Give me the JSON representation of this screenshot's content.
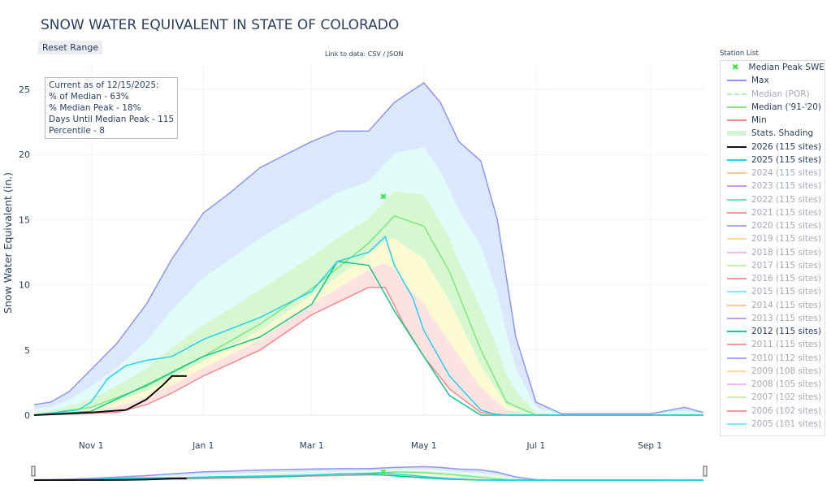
{
  "title": "SNOW WATER EQUIVALENT IN STATE OF COLORADO",
  "reset_label": "Reset Range",
  "link_text": "Link to data: CSV / JSON",
  "info": [
    "Current as of 12/15/2025:",
    "% of Median - 63%",
    "% Median Peak - 18%",
    "Days Until Median Peak - 115",
    "Percentile - 8"
  ],
  "station_list_label": "Station List",
  "legend": [
    {
      "label": "Median Peak SWE",
      "color": "#33ee33",
      "marker": "x",
      "active": true
    },
    {
      "label": "Max",
      "color": "#8f94f0",
      "active": true
    },
    {
      "label": "Median (POR)",
      "color": "#b8f2b8",
      "dash": true,
      "active": false
    },
    {
      "label": "Median ('91-'20)",
      "color": "#7ee87e",
      "active": true
    },
    {
      "label": "Min",
      "color": "#f08c8c",
      "active": true
    },
    {
      "label": "Stats. Shading",
      "color": "#d3f5d3",
      "thick": true,
      "active": true
    },
    {
      "label": "2026 (115 sites)",
      "color": "#111111",
      "active": true
    },
    {
      "label": "2025 (115 sites)",
      "color": "#22d3ee",
      "active": true
    },
    {
      "label": "2024 (115 sites)",
      "color": "#fbc89a",
      "active": false
    },
    {
      "label": "2023 (115 sites)",
      "color": "#c79af5",
      "active": false
    },
    {
      "label": "2022 (115 sites)",
      "color": "#6fe0c0",
      "active": false
    },
    {
      "label": "2021 (115 sites)",
      "color": "#f59a9a",
      "active": false
    },
    {
      "label": "2020 (115 sites)",
      "color": "#a6a8f5",
      "active": false
    },
    {
      "label": "2019 (115 sites)",
      "color": "#fcd99a",
      "active": false
    },
    {
      "label": "2018 (115 sites)",
      "color": "#f5b5f0",
      "active": false
    },
    {
      "label": "2017 (115 sites)",
      "color": "#c9eea5",
      "active": false
    },
    {
      "label": "2016 (115 sites)",
      "color": "#f59a9a",
      "active": false
    },
    {
      "label": "2015 (115 sites)",
      "color": "#8ae6f2",
      "active": false
    },
    {
      "label": "2014 (115 sites)",
      "color": "#fbc89a",
      "active": false
    },
    {
      "label": "2013 (115 sites)",
      "color": "#c79af5",
      "active": false
    },
    {
      "label": "2012 (115 sites)",
      "color": "#10c98a",
      "active": true
    },
    {
      "label": "2011 (115 sites)",
      "color": "#f59a9a",
      "active": false
    },
    {
      "label": "2010 (112 sites)",
      "color": "#a6a8f5",
      "active": false
    },
    {
      "label": "2009 (108 sites)",
      "color": "#fcd99a",
      "active": false
    },
    {
      "label": "2008 (105 sites)",
      "color": "#f5b5f0",
      "active": false
    },
    {
      "label": "2007 (102 sites)",
      "color": "#c9eea5",
      "active": false
    },
    {
      "label": "2006 (102 sites)",
      "color": "#f59a9a",
      "active": false
    },
    {
      "label": "2005 (101 sites)",
      "color": "#8ae6f2",
      "active": false
    }
  ],
  "chart_data": {
    "type": "line",
    "ylabel": "Snow Water Equivalent (in.)",
    "ylim": [
      0,
      27
    ],
    "yticks": [
      0,
      5,
      10,
      15,
      20,
      25
    ],
    "xlim": [
      "10-01",
      "09-30"
    ],
    "xticks": [
      {
        "date": "11-01",
        "label": "Nov 1"
      },
      {
        "date": "01-01",
        "label": "Jan 1"
      },
      {
        "date": "03-01",
        "label": "Mar 1"
      },
      {
        "date": "05-01",
        "label": "May 1"
      },
      {
        "date": "07-01",
        "label": "Jul 1"
      },
      {
        "date": "09-01",
        "label": "Sep 1"
      }
    ],
    "grid": true,
    "legend_position": "right",
    "median_peak": {
      "date": "04-09",
      "value": 16.8
    },
    "series": [
      {
        "name": "Max",
        "color": "#8f94f0",
        "points": [
          [
            "10-01",
            0.8
          ],
          [
            "10-10",
            1.0
          ],
          [
            "10-20",
            1.8
          ],
          [
            "11-01",
            3.5
          ],
          [
            "11-15",
            5.5
          ],
          [
            "12-01",
            8.5
          ],
          [
            "12-15",
            12
          ],
          [
            "01-01",
            15.5
          ],
          [
            "01-15",
            17
          ],
          [
            "02-01",
            19
          ],
          [
            "02-15",
            20
          ],
          [
            "03-01",
            21
          ],
          [
            "03-15",
            21.8
          ],
          [
            "04-01",
            21.8
          ],
          [
            "04-15",
            24
          ],
          [
            "05-01",
            25.5
          ],
          [
            "05-10",
            24
          ],
          [
            "05-20",
            21
          ],
          [
            "06-01",
            19.5
          ],
          [
            "06-10",
            15
          ],
          [
            "06-20",
            6
          ],
          [
            "07-01",
            1
          ],
          [
            "07-15",
            0.1
          ],
          [
            "09-01",
            0.1
          ],
          [
            "09-20",
            0.6
          ],
          [
            "09-30",
            0.2
          ]
        ]
      },
      {
        "name": "Median ('91-'20)",
        "color": "#7ee87e",
        "points": [
          [
            "10-01",
            0
          ],
          [
            "11-01",
            0.6
          ],
          [
            "12-01",
            2.2
          ],
          [
            "01-01",
            4.5
          ],
          [
            "02-01",
            7
          ],
          [
            "03-01",
            9.7
          ],
          [
            "04-01",
            13.2
          ],
          [
            "04-15",
            15.3
          ],
          [
            "05-01",
            14.5
          ],
          [
            "05-15",
            11
          ],
          [
            "06-01",
            5
          ],
          [
            "06-15",
            1
          ],
          [
            "07-01",
            0
          ],
          [
            "09-30",
            0
          ]
        ]
      },
      {
        "name": "Min",
        "color": "#f08c8c",
        "points": [
          [
            "10-01",
            0
          ],
          [
            "11-15",
            0.2
          ],
          [
            "12-01",
            0.8
          ],
          [
            "12-15",
            1.7
          ],
          [
            "01-01",
            3
          ],
          [
            "02-01",
            5
          ],
          [
            "03-01",
            7.7
          ],
          [
            "04-01",
            9.8
          ],
          [
            "04-10",
            9.8
          ],
          [
            "04-20",
            7
          ],
          [
            "05-01",
            4.5
          ],
          [
            "05-15",
            2
          ],
          [
            "06-01",
            0.2
          ],
          [
            "06-15",
            0
          ],
          [
            "09-30",
            0
          ]
        ]
      },
      {
        "name": "2012 (115 sites)",
        "color": "#10c98a",
        "points": [
          [
            "10-01",
            0
          ],
          [
            "11-01",
            0.3
          ],
          [
            "12-01",
            2.3
          ],
          [
            "01-01",
            4.5
          ],
          [
            "02-01",
            6
          ],
          [
            "03-01",
            8.5
          ],
          [
            "03-15",
            11.8
          ],
          [
            "04-01",
            11.5
          ],
          [
            "04-15",
            8
          ],
          [
            "05-01",
            4.5
          ],
          [
            "05-15",
            1.5
          ],
          [
            "06-01",
            0
          ],
          [
            "09-30",
            0
          ]
        ]
      },
      {
        "name": "2025 (115 sites)",
        "color": "#22d3ee",
        "points": [
          [
            "10-01",
            0
          ],
          [
            "10-25",
            0.4
          ],
          [
            "11-01",
            1.0
          ],
          [
            "11-10",
            2.8
          ],
          [
            "11-20",
            3.8
          ],
          [
            "12-01",
            4.2
          ],
          [
            "12-15",
            4.5
          ],
          [
            "01-01",
            5.8
          ],
          [
            "02-01",
            7.5
          ],
          [
            "03-01",
            9.5
          ],
          [
            "03-15",
            11.8
          ],
          [
            "04-01",
            12.5
          ],
          [
            "04-10",
            13.7
          ],
          [
            "04-15",
            11.5
          ],
          [
            "04-25",
            9
          ],
          [
            "05-01",
            6.5
          ],
          [
            "05-15",
            3
          ],
          [
            "06-01",
            0.4
          ],
          [
            "06-10",
            0
          ],
          [
            "09-30",
            0
          ]
        ]
      },
      {
        "name": "2026 (115 sites)",
        "color": "#111111",
        "points": [
          [
            "10-01",
            0
          ],
          [
            "11-01",
            0.2
          ],
          [
            "11-20",
            0.4
          ],
          [
            "12-01",
            1.2
          ],
          [
            "12-10",
            2.3
          ],
          [
            "12-15",
            3.0
          ],
          [
            "12-23",
            3.0
          ]
        ]
      }
    ]
  }
}
